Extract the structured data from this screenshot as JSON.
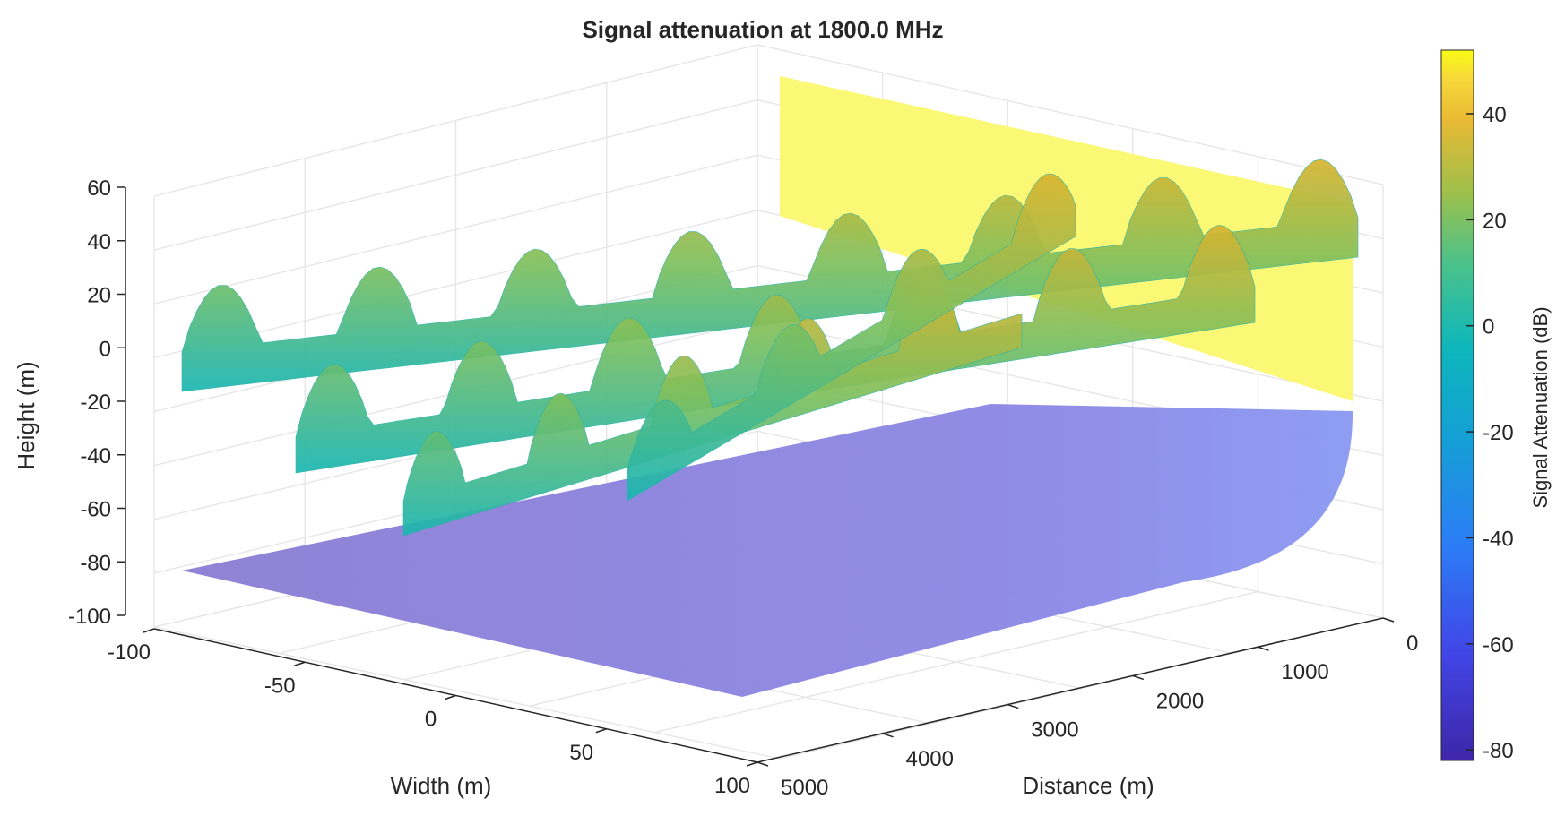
{
  "chart_data": {
    "type": "surface3d",
    "title": "Signal attenuation at 1800.0 MHz",
    "xlabel": "Width (m)",
    "ylabel": "Distance (m)",
    "zlabel": "Height (m)",
    "colorbar_label": "Signal Attenuation (dB)",
    "xlim": [
      -100,
      100
    ],
    "ylim": [
      0,
      5000
    ],
    "zlim": [
      -100,
      60
    ],
    "clim": [
      -82,
      52
    ],
    "x_ticks": [
      -100,
      -50,
      0,
      50,
      100
    ],
    "y_ticks": [
      0,
      1000,
      2000,
      3000,
      4000,
      5000
    ],
    "z_ticks": [
      60,
      40,
      20,
      0,
      -20,
      -40,
      -60,
      -80,
      -100
    ],
    "colorbar_ticks": [
      40,
      20,
      0,
      -20,
      -40,
      -60,
      -80
    ],
    "colormap": "parula",
    "grid": true,
    "colorbar_position": "right",
    "surfaces": [
      {
        "name": "ground attenuation plane",
        "color_value": -70,
        "z": -82,
        "curved_edge_near_distance": 0
      },
      {
        "name": "upper attenuation plane",
        "color_value": 50,
        "vertical_extent_at_width": 100,
        "z_range": [
          -20,
          60
        ]
      },
      {
        "name": "wave surface",
        "shape": "sinusoidal ridges along width and distance",
        "z_range": [
          -60,
          20
        ],
        "color_range": [
          -15,
          25
        ]
      }
    ]
  },
  "colors": {
    "low": "#3E26A8",
    "mid": "#1FB6B4",
    "high": "#F9FB15",
    "grid": "#E6E6E6",
    "axis": "#262626"
  }
}
